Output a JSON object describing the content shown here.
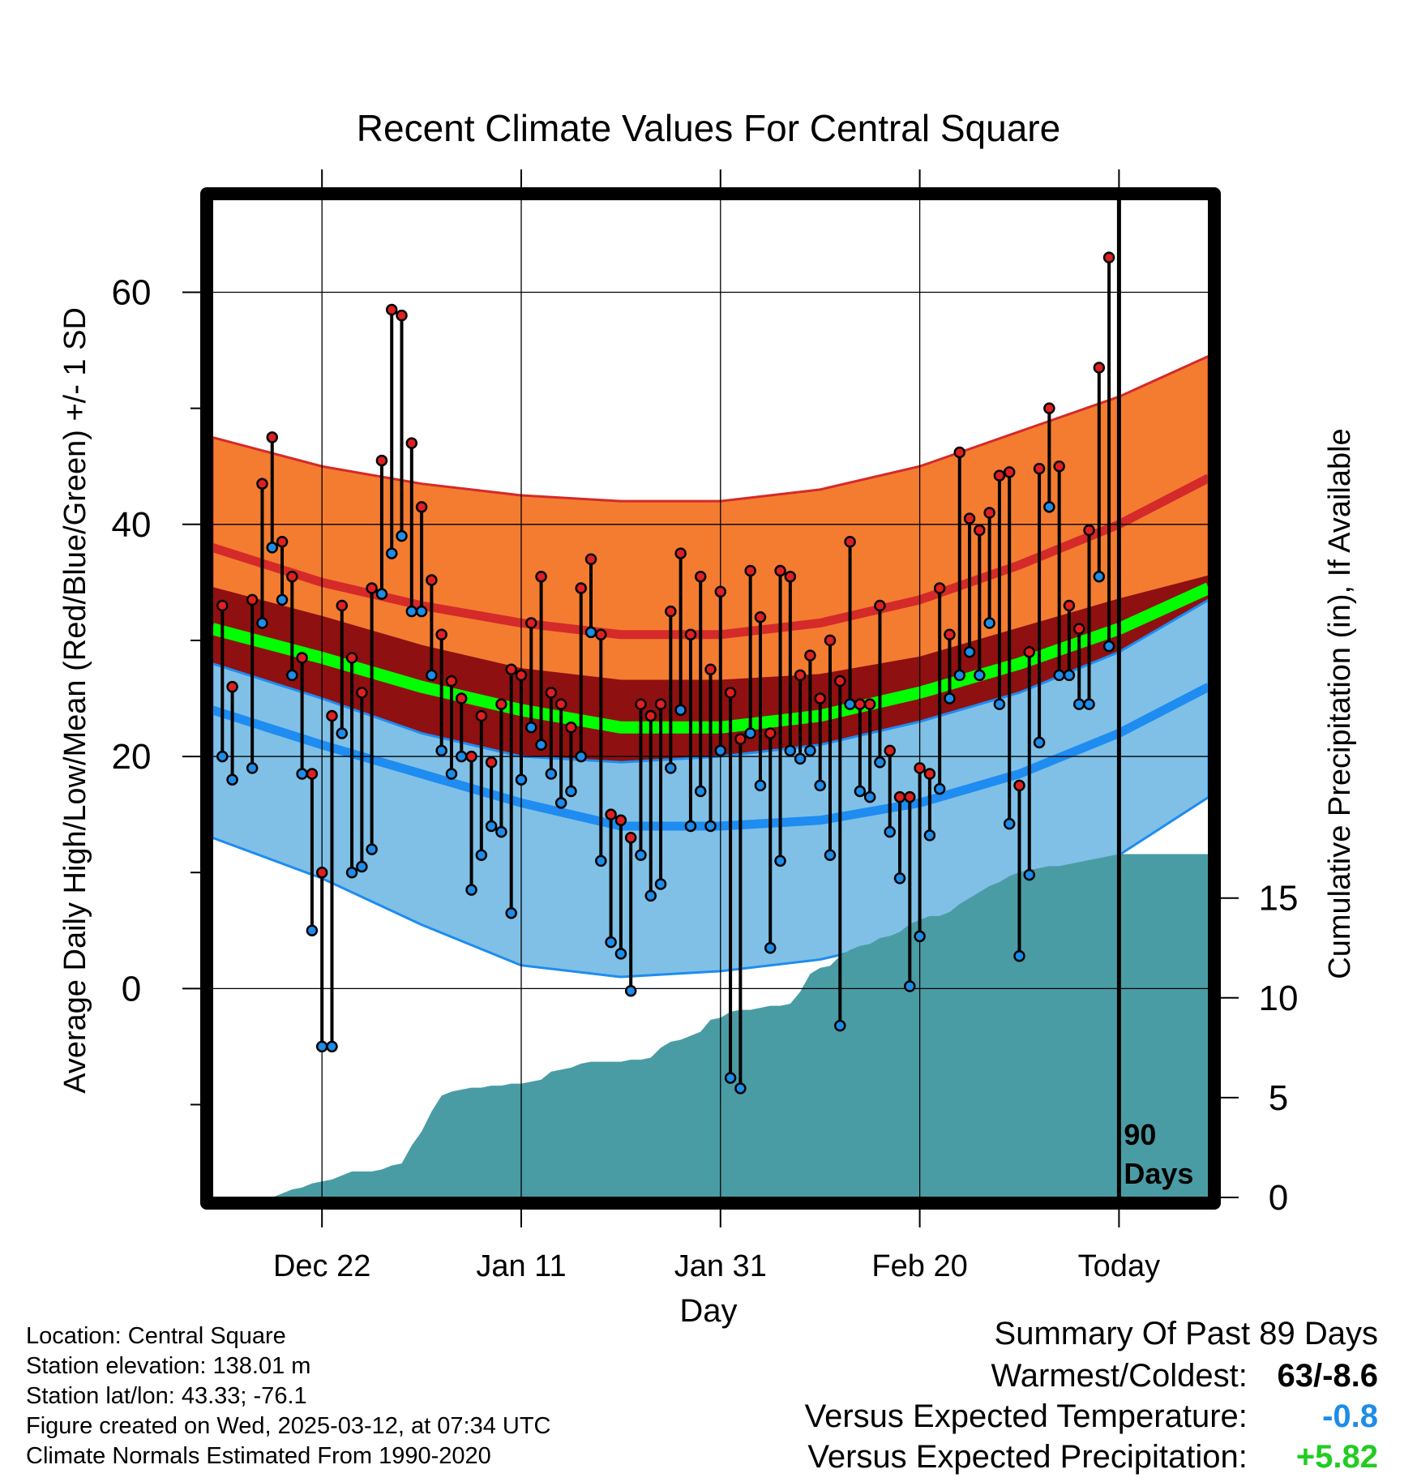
{
  "colors": {
    "normal_high_band": "#f47c30",
    "normal_high_line": "#d42a2a",
    "normal_mean_band": "#8f1010",
    "normal_mean_line": "#00ff00",
    "normal_low_band": "#80c0e6",
    "normal_low_line": "#1e8cf0",
    "precip_area": "#4a9ca4",
    "high_marker": "#e02020",
    "low_marker": "#1e8ce8"
  },
  "chart_data": {
    "type": "line",
    "title": "Recent Climate Values For Central Square",
    "xlabel": "Day",
    "ylabel": "Average Daily High/Low/Mean (Red/Blue/Green) +/- 1 SD",
    "y2label": "Cumulative Precipitation (in), If Available",
    "xlim": [
      -11,
      89
    ],
    "ylim": [
      -18,
      68
    ],
    "y2lim": [
      0,
      50
    ],
    "y_ticks": [
      0,
      20,
      40,
      60
    ],
    "y2_ticks": [
      0,
      5,
      10,
      15
    ],
    "x_ticks": [
      {
        "x": 0,
        "label": "Dec 22"
      },
      {
        "x": 20,
        "label": "Jan 11"
      },
      {
        "x": 40,
        "label": "Jan 31"
      },
      {
        "x": 60,
        "label": "Feb 20"
      },
      {
        "x": 80,
        "label": "Today"
      }
    ],
    "today_line": {
      "x": 80,
      "label_line1": "90",
      "label_line2": "Days"
    },
    "grid": true,
    "normals": {
      "x": [
        -11,
        0,
        10,
        20,
        30,
        40,
        50,
        60,
        70,
        80,
        89
      ],
      "high_plus_sd": [
        47.5,
        45,
        43.5,
        42.5,
        42,
        42,
        43,
        45,
        48,
        51,
        54.5
      ],
      "high": [
        38,
        35,
        33,
        31.5,
        30.5,
        30.5,
        31.5,
        33.5,
        36.5,
        40,
        44
      ],
      "high_minus_sd": [
        34.5,
        32,
        29.5,
        27.5,
        26.5,
        26.5,
        27,
        28.5,
        31,
        33.5,
        35.5
      ],
      "mean_plus_sd": [
        34.5,
        32,
        29.5,
        27.5,
        26.5,
        26.5,
        27,
        28.5,
        31,
        33.5,
        35.5
      ],
      "mean": [
        31,
        28.5,
        26,
        24,
        22.5,
        22.5,
        23.5,
        25.5,
        28,
        31,
        34.5
      ],
      "mean_minus_sd": [
        28,
        25,
        22,
        20,
        19.5,
        20,
        21,
        23,
        25.5,
        29,
        33.5
      ],
      "low_plus_sd": [
        28,
        25,
        22,
        20,
        19.5,
        20,
        21,
        23,
        25.5,
        29,
        33.5
      ],
      "low": [
        24,
        21,
        18.5,
        16,
        14,
        14,
        14.5,
        16,
        18.5,
        22,
        26
      ],
      "low_minus_sd": [
        13,
        9.5,
        5.5,
        2,
        1,
        1.5,
        2.5,
        4.5,
        7.5,
        11.5,
        16.5
      ]
    },
    "observed": {
      "x": [
        -10,
        -9,
        -7,
        -6,
        -5,
        -4,
        -3,
        -2,
        -1,
        0,
        1,
        2,
        3,
        4,
        5,
        6,
        7,
        8,
        9,
        10,
        11,
        12,
        13,
        14,
        15,
        16,
        17,
        18,
        19,
        20,
        21,
        22,
        23,
        24,
        25,
        26,
        27,
        28,
        29,
        30,
        31,
        32,
        33,
        34,
        35,
        36,
        37,
        38,
        39,
        40,
        41,
        42,
        43,
        44,
        45,
        46,
        47,
        48,
        49,
        50,
        51,
        52,
        53,
        54,
        55,
        56,
        57,
        58,
        59,
        60,
        61,
        62,
        63,
        64,
        65,
        66,
        67,
        68,
        69,
        70,
        71,
        72,
        73,
        74,
        75,
        76,
        77,
        78,
        79
      ],
      "high": [
        33,
        26,
        33.5,
        43.5,
        47.5,
        38.5,
        35.5,
        28.5,
        18.5,
        10,
        23.5,
        33,
        28.5,
        25.5,
        34.5,
        45.5,
        58.5,
        58,
        47,
        41.5,
        35.2,
        30.5,
        26.5,
        25,
        20,
        23.5,
        19.5,
        24.5,
        27.5,
        27,
        31.5,
        35.5,
        25.5,
        24.5,
        22.5,
        34.5,
        37,
        30.5,
        15,
        14.5,
        13,
        24.5,
        23.5,
        24.5,
        32.5,
        37.5,
        30.5,
        35.5,
        27.5,
        34.2,
        25.5,
        21.5,
        36,
        32,
        22,
        36,
        35.5,
        27,
        28.7,
        25,
        30,
        26.5,
        38.5,
        24.5,
        24.5,
        33,
        20.5,
        16.5,
        16.5,
        19,
        18.5,
        34.5,
        30.5,
        46.2,
        40.5,
        39.5,
        41,
        44.2,
        44.5,
        17.5,
        29,
        44.8,
        50,
        45,
        33,
        31,
        39.5,
        53.5,
        63
      ],
      "low": [
        20,
        18,
        19,
        31.5,
        38,
        33.5,
        27,
        18.5,
        5,
        -5,
        -5,
        22,
        10,
        10.5,
        12,
        34,
        37.5,
        39,
        32.5,
        32.5,
        27,
        20.5,
        18.5,
        20,
        8.5,
        11.5,
        14,
        13.5,
        6.5,
        18,
        22.5,
        21,
        18.5,
        16,
        17,
        20,
        30.7,
        11,
        4,
        3,
        -0.2,
        11.5,
        8,
        9,
        19,
        24,
        14,
        17,
        14,
        20.5,
        -7.7,
        -8.6,
        22,
        17.5,
        3.5,
        11,
        20.5,
        19.8,
        20.5,
        17.5,
        11.5,
        -3.2,
        24.5,
        17,
        16.5,
        19.5,
        13.5,
        9.5,
        0.2,
        4.5,
        13.2,
        17.2,
        25,
        27,
        29,
        27,
        31.5,
        24.5,
        14.2,
        2.8,
        9.8,
        21.2,
        41.5,
        27,
        27,
        24.5,
        24.5,
        35.5,
        29.5
      ]
    },
    "precipitation": {
      "x": [
        -6,
        -5,
        -4,
        -3,
        -2,
        -1,
        0,
        1,
        2,
        3,
        4,
        5,
        6,
        7,
        8,
        9,
        10,
        11,
        12,
        13,
        14,
        15,
        16,
        17,
        18,
        19,
        20,
        21,
        22,
        23,
        24,
        25,
        26,
        27,
        28,
        29,
        30,
        31,
        32,
        33,
        34,
        35,
        36,
        37,
        38,
        39,
        40,
        41,
        42,
        43,
        44,
        45,
        46,
        47,
        48,
        49,
        50,
        51,
        52,
        53,
        54,
        55,
        56,
        57,
        58,
        59,
        60,
        61,
        62,
        63,
        64,
        65,
        66,
        67,
        68,
        69,
        70,
        71,
        72,
        73,
        74,
        75,
        76,
        77,
        78,
        79,
        80,
        89
      ],
      "values": [
        0,
        0,
        0.2,
        0.4,
        0.5,
        0.7,
        0.8,
        0.9,
        1.1,
        1.3,
        1.3,
        1.3,
        1.4,
        1.6,
        1.7,
        2.6,
        3.3,
        4.3,
        5.1,
        5.3,
        5.4,
        5.5,
        5.5,
        5.6,
        5.6,
        5.7,
        5.7,
        5.8,
        5.9,
        6.3,
        6.4,
        6.5,
        6.7,
        6.8,
        6.8,
        6.8,
        6.8,
        6.9,
        6.9,
        7,
        7.5,
        7.8,
        7.9,
        8.1,
        8.3,
        8.9,
        9.0,
        9.3,
        9.4,
        9.4,
        9.5,
        9.6,
        9.6,
        9.7,
        10.3,
        11.2,
        11.5,
        11.6,
        12.1,
        12.4,
        12.6,
        12.7,
        13.0,
        13.1,
        13.3,
        13.7,
        13.9,
        14.1,
        14.1,
        14.3,
        14.7,
        15.0,
        15.3,
        15.6,
        15.8,
        16.1,
        16.3,
        16.4,
        16.5,
        16.6,
        16.6,
        16.7,
        16.8,
        16.9,
        17.0,
        17.1,
        17.2,
        17.2
      ]
    }
  },
  "location_info": [
    "Location: Central Square",
    "Station elevation: 138.01 m",
    "Station lat/lon: 43.33; -76.1",
    "Figure created on Wed, 2025-03-12, at 07:34 UTC",
    "Climate Normals Estimated From 1990-2020"
  ],
  "summary": {
    "title": "Summary Of Past 89 Days",
    "warmest_coldest_label": "Warmest/Coldest:",
    "warmest_coldest_value": "63/-8.6",
    "temp_label": "Versus Expected Temperature:",
    "temp_value": "-0.8",
    "temp_color": "#1e8ce8",
    "precip_label": "Versus Expected Precipitation:",
    "precip_value": "+5.82",
    "precip_color": "#22cc22"
  }
}
